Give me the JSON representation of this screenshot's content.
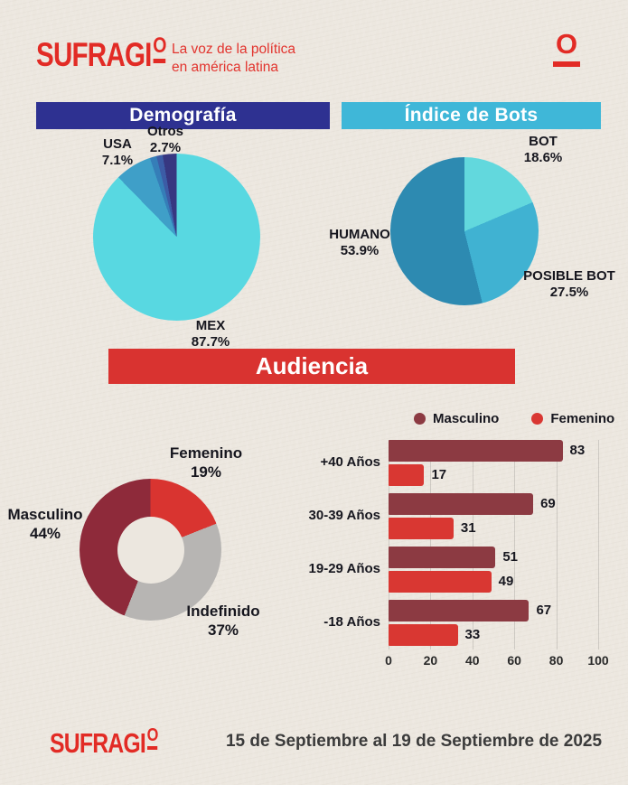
{
  "header": {
    "logo_text": "SUFRAGI",
    "logo_o": "O",
    "tagline_line1": "La voz de la política",
    "tagline_line2": "en américa latina",
    "mark_letter": "O"
  },
  "sections": {
    "demografia": "Demografía",
    "bots": "Índice de Bots",
    "audiencia": "Audiencia"
  },
  "footer": {
    "logo_text": "SUFRAGI",
    "logo_o": "O",
    "date_range": "15 de Septiembre al 19 de Septiembre de 2025"
  },
  "colors": {
    "accent_red": "#d93330",
    "navy": "#2e3191",
    "cyan": "#3fb7d8",
    "paper": "#ece7df"
  },
  "chart_data": [
    {
      "id": "demografia_pie",
      "type": "pie",
      "title": "Demografía",
      "legend_position": "none",
      "slices": [
        {
          "label": "MEX",
          "pct": "87.7%",
          "value": 87.7,
          "color": "#58d8e1"
        },
        {
          "label": "USA",
          "pct": "7.1%",
          "value": 7.1,
          "color": "#3f9fc8"
        },
        {
          "label": "",
          "pct": "",
          "value": 1.3,
          "color": "#357eb8"
        },
        {
          "label": "",
          "pct": "",
          "value": 1.2,
          "color": "#3c5ca6"
        },
        {
          "label": "Otros",
          "pct": "2.7%",
          "value": 2.7,
          "color": "#373781"
        }
      ]
    },
    {
      "id": "bots_pie",
      "type": "pie",
      "title": "Índice de Bots",
      "legend_position": "none",
      "slices": [
        {
          "label": "BOT",
          "pct": "18.6%",
          "value": 18.6,
          "color": "#62d8dd"
        },
        {
          "label": "POSIBLE BOT",
          "pct": "27.5%",
          "value": 27.5,
          "color": "#40b2d2"
        },
        {
          "label": "HUMANO",
          "pct": "53.9%",
          "value": 53.9,
          "color": "#2d8ab1"
        }
      ]
    },
    {
      "id": "audiencia_donut",
      "type": "pie",
      "subtype": "donut",
      "title": "Audiencia",
      "legend_position": "none",
      "slices": [
        {
          "label": "Femenino",
          "pct": "19%",
          "value": 19,
          "color": "#d93430"
        },
        {
          "label": "Indefinido",
          "pct": "37%",
          "value": 37,
          "color": "#b7b5b3"
        },
        {
          "label": "Masculino",
          "pct": "44%",
          "value": 44,
          "color": "#8e2a3a"
        }
      ]
    },
    {
      "id": "audiencia_bars",
      "type": "bar",
      "orientation": "horizontal",
      "title": "Audiencia",
      "categories": [
        "+40 Años",
        "30-39 Años",
        "19-29 Años",
        "-18 Años"
      ],
      "series": [
        {
          "name": "Masculino",
          "color": "#8c3a42",
          "values": [
            83,
            69,
            51,
            67
          ]
        },
        {
          "name": "Femenino",
          "color": "#d93732",
          "values": [
            17,
            31,
            49,
            33
          ]
        }
      ],
      "xlim": [
        0,
        100
      ],
      "ticks": [
        0,
        20,
        40,
        60,
        80,
        100
      ],
      "grid": true,
      "legend_position": "top"
    }
  ]
}
